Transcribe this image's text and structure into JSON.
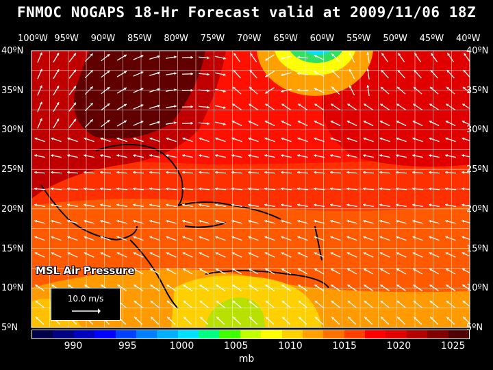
{
  "title": "FNMOC NOGAPS 18-Hr Forecast valid at 2009/11/06 18Z",
  "panel_label": "MSL Air Pressure",
  "reference_vector": {
    "label": "10.0 m/s",
    "speed_ms": 10.0
  },
  "units": "mb",
  "longitude_labels": [
    "100ºW",
    "95ºW",
    "90ºW",
    "85ºW",
    "80ºW",
    "75ºW",
    "70ºW",
    "65ºW",
    "60ºW",
    "55ºW",
    "50ºW",
    "45ºW",
    "40ºW"
  ],
  "latitude_labels": [
    "40ºN",
    "35ºN",
    "30ºN",
    "25ºN",
    "20ºN",
    "15ºN",
    "10ºN",
    "5ºN"
  ],
  "colorbar": {
    "colors": [
      "#00004a",
      "#000080",
      "#0000c0",
      "#0000ff",
      "#0040ff",
      "#0080ff",
      "#00b0ff",
      "#00e0ff",
      "#00ff80",
      "#40ff00",
      "#c0ff00",
      "#ffff00",
      "#ffd000",
      "#ffa000",
      "#ff7000",
      "#ff4000",
      "#ff0000",
      "#e00000",
      "#b00000",
      "#800000",
      "#500000"
    ],
    "tick_values": [
      "990",
      "995",
      "1000",
      "1005",
      "1010",
      "1015",
      "1020",
      "1025"
    ]
  }
}
